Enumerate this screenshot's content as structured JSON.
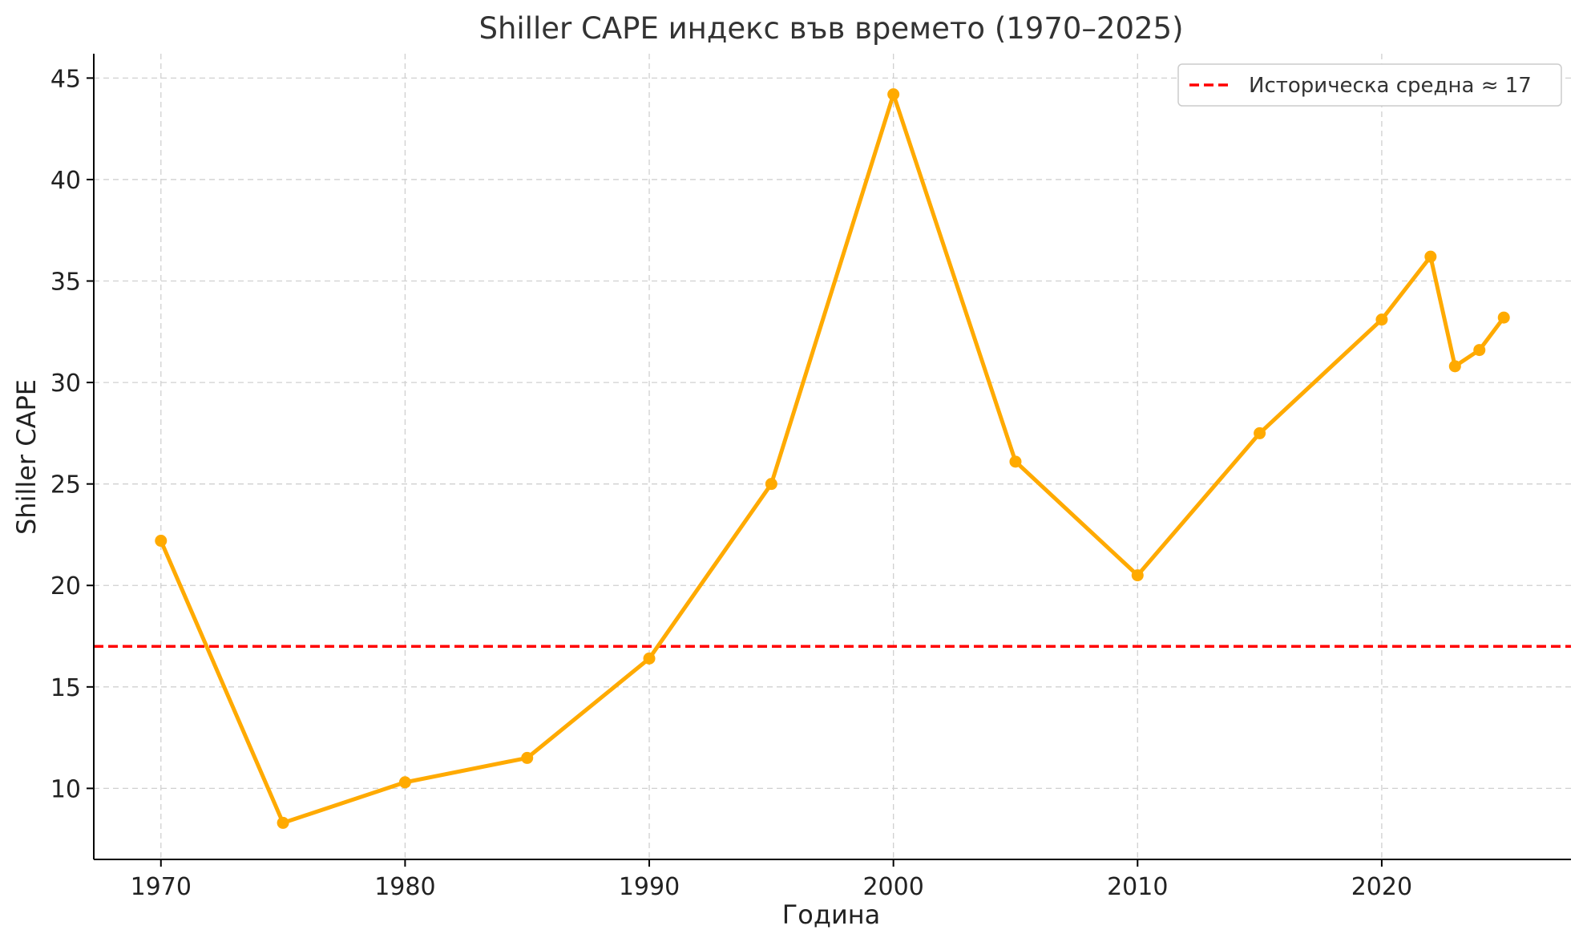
{
  "chart_data": {
    "type": "line",
    "title": "Shiller CAPE индекс във времето (1970–2025)",
    "xlabel": "Година",
    "ylabel": "Shiller CAPE",
    "xlim": [
      1967.25,
      2027.75
    ],
    "ylim": [
      6.5,
      46.2
    ],
    "x_ticks": [
      1970,
      1980,
      1990,
      2000,
      2010,
      2020
    ],
    "y_ticks": [
      10,
      15,
      20,
      25,
      30,
      35,
      40,
      45
    ],
    "grid": true,
    "series": [
      {
        "color": "#FFAA00",
        "marker": "circle",
        "x": [
          1970,
          1975,
          1980,
          1985,
          1990,
          1995,
          2000,
          2005,
          2010,
          2015,
          2020,
          2022,
          2023,
          2024,
          2025
        ],
        "values": [
          22.2,
          8.3,
          10.3,
          11.5,
          16.4,
          25.0,
          44.2,
          26.1,
          20.5,
          27.5,
          33.1,
          36.2,
          30.8,
          31.6,
          33.2
        ]
      }
    ],
    "reference_lines": [
      {
        "orientation": "horizontal",
        "value": 17,
        "color": "#FF0000",
        "style": "dashed",
        "label": "Историческа средна ≈ 17"
      }
    ],
    "legend": {
      "placement": "top-right",
      "entries": [
        "Историческа средна ≈ 17"
      ]
    }
  }
}
